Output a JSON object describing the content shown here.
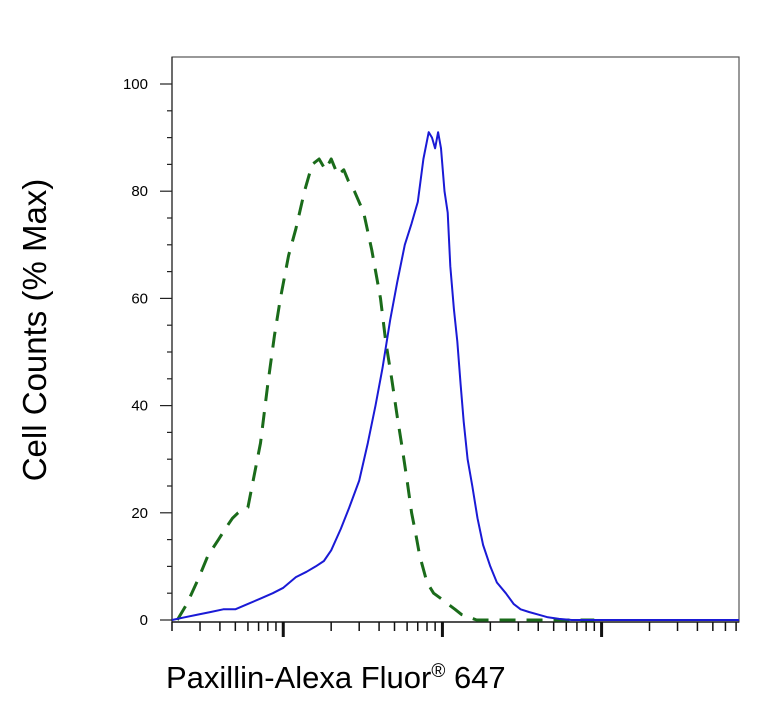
{
  "chart_data": {
    "type": "line",
    "title": "",
    "xlabel": "Paxillin-Alexa Fluor",
    "xlabel_superscript": "®",
    "xlabel_suffix": " 647",
    "ylabel": "Cell Counts (% Max)",
    "x_scale": "log",
    "xlim": [
      20,
      73000
    ],
    "ylim": [
      0,
      100
    ],
    "yticks": [
      "0",
      "20",
      "40",
      "60",
      "80",
      "100"
    ],
    "grid": false,
    "series": [
      {
        "style": "dashed",
        "color": "#1a6b1a",
        "x": [
          21.6,
          24.8,
          29.6,
          33.6,
          39.2,
          43.2,
          48,
          52,
          60,
          72,
          80,
          88,
          96,
          108,
          120,
          136,
          152,
          168,
          184,
          200,
          220,
          240,
          256,
          280,
          320,
          360,
          408,
          440,
          480,
          520,
          560,
          600,
          640,
          680,
          720,
          800,
          880,
          980,
          1080,
          1200,
          1320,
          1480,
          1640,
          1800,
          2000,
          2400,
          2800,
          3400,
          4000,
          5000,
          6000,
          9000
        ],
        "values": [
          0,
          3,
          8,
          12,
          15,
          17,
          19,
          20,
          21,
          33,
          44,
          53,
          60,
          68,
          73,
          80,
          85,
          86,
          84,
          86,
          83,
          84,
          82,
          80,
          76,
          69,
          60,
          52,
          45,
          38,
          32,
          26,
          20,
          16,
          12,
          7,
          5,
          4,
          3,
          2,
          1,
          0.5,
          0,
          0,
          0,
          0,
          0,
          0,
          0,
          0,
          0,
          0
        ]
      },
      {
        "style": "solid",
        "color": "#1a1ad6",
        "x": [
          20,
          24,
          29,
          35,
          42,
          50,
          60,
          72,
          86,
          100,
          120,
          140,
          160,
          180,
          200,
          230,
          260,
          300,
          340,
          380,
          420,
          470,
          520,
          580,
          640,
          700,
          760,
          820,
          860,
          900,
          940,
          980,
          1030,
          1080,
          1120,
          1180,
          1240,
          1300,
          1360,
          1440,
          1540,
          1660,
          1800,
          2000,
          2200,
          2500,
          2800,
          3100,
          3500,
          4000,
          4600,
          5400,
          6500,
          8000,
          10000,
          14000,
          20000,
          30000,
          50000,
          73000
        ],
        "values": [
          0,
          0.5,
          1,
          1.5,
          2,
          2,
          3,
          4,
          5,
          6,
          8,
          9,
          10,
          11,
          13,
          17,
          21,
          26,
          33,
          40,
          47,
          56,
          63,
          70,
          74,
          78,
          86,
          91,
          90,
          88,
          91,
          88,
          80,
          76,
          66,
          58,
          52,
          44,
          37,
          30,
          25,
          19,
          14,
          10,
          7,
          5,
          3,
          2,
          1.5,
          1,
          0.5,
          0.2,
          0,
          0,
          0,
          0,
          0,
          0,
          0,
          0
        ]
      }
    ]
  }
}
